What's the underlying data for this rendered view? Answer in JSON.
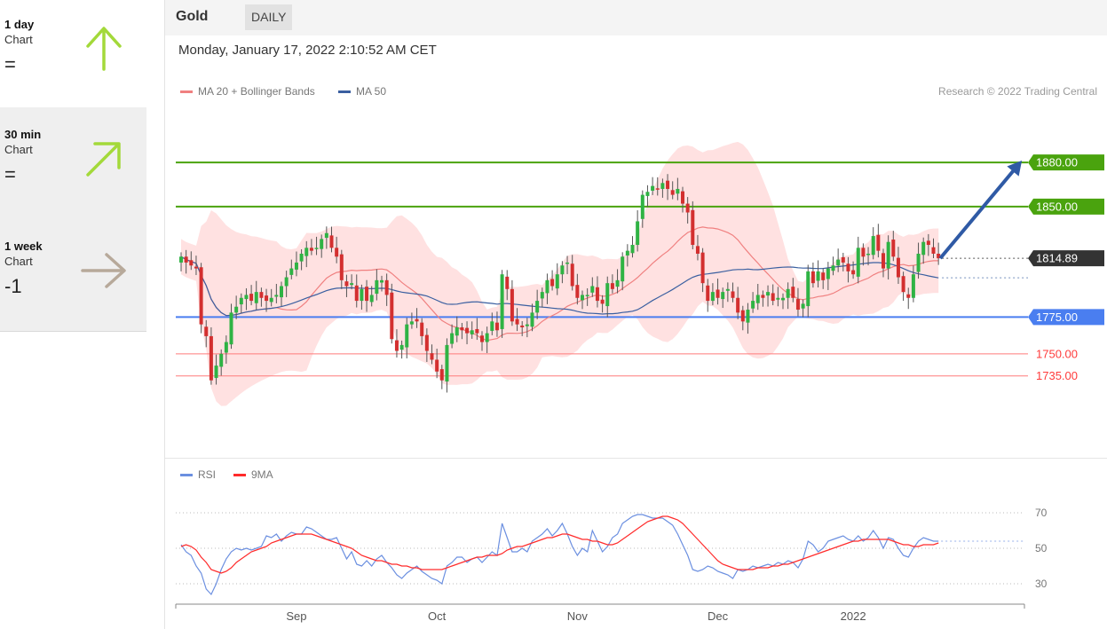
{
  "sidebar": [
    {
      "period": "1 day",
      "sub": "Chart",
      "value": "=",
      "direction": "up",
      "color": "#a3d93a"
    },
    {
      "period": "30 min",
      "sub": "Chart",
      "value": "=",
      "direction": "up-right",
      "color": "#a3d93a"
    },
    {
      "period": "1 week",
      "sub": "Chart",
      "value": "-1",
      "direction": "right",
      "color": "#b7a99a"
    }
  ],
  "header": {
    "title": "Gold",
    "badge": "DAILY"
  },
  "datetime": "Monday, January 17, 2022 2:10:52 AM CET",
  "legend": {
    "ma20": "MA 20 + Bollinger Bands",
    "ma50": "MA 50",
    "credit": "Research © 2022 Trading Central"
  },
  "rsi_legend": {
    "rsi": "RSI",
    "ma9": "9MA"
  },
  "colors": {
    "ma20": "#f08080",
    "ma50": "#3a5fa0",
    "rsi": "#6b8fe0",
    "ma9": "#ff2b2b",
    "up": "#2fb344",
    "down": "#d32f2f",
    "resistance": "#4aa30e",
    "support": "#4a7ef0",
    "support_minor": "#ff7b7b"
  },
  "chart_data": [
    {
      "type": "candlestick",
      "title": "Gold",
      "timeframe": "DAILY",
      "ylim": [
        1680,
        1915
      ],
      "x_ticks": [
        "Sep",
        "Oct",
        "Nov",
        "Dec",
        "2022"
      ],
      "x_tick_index": [
        23,
        51,
        79,
        107,
        134
      ],
      "last_price": 1814.89,
      "levels": [
        {
          "value": 1880.0,
          "label": "1880.00",
          "kind": "resistance"
        },
        {
          "value": 1850.0,
          "label": "1850.00",
          "kind": "resistance"
        },
        {
          "value": 1814.89,
          "label": "1814.89",
          "kind": "last"
        },
        {
          "value": 1775.0,
          "label": "1775.00",
          "kind": "support"
        },
        {
          "value": 1750.0,
          "label": "1750.00",
          "kind": "support_minor"
        },
        {
          "value": 1735.0,
          "label": "1735.00",
          "kind": "support_minor"
        }
      ],
      "target_arrow": {
        "from": 1814.89,
        "to": 1880.0
      },
      "closes": [
        1816,
        1812,
        1810,
        1808,
        1770,
        1762,
        1732,
        1742,
        1750,
        1758,
        1778,
        1782,
        1788,
        1790,
        1786,
        1792,
        1788,
        1786,
        1788,
        1790,
        1796,
        1802,
        1808,
        1812,
        1818,
        1822,
        1820,
        1822,
        1828,
        1832,
        1822,
        1816,
        1800,
        1796,
        1798,
        1786,
        1794,
        1786,
        1790,
        1800,
        1800,
        1790,
        1760,
        1752,
        1756,
        1770,
        1772,
        1772,
        1762,
        1752,
        1746,
        1738,
        1732,
        1756,
        1764,
        1768,
        1766,
        1764,
        1766,
        1764,
        1758,
        1764,
        1772,
        1766,
        1804,
        1794,
        1772,
        1770,
        1768,
        1770,
        1778,
        1786,
        1792,
        1800,
        1796,
        1804,
        1810,
        1812,
        1796,
        1788,
        1790,
        1790,
        1796,
        1786,
        1784,
        1798,
        1794,
        1800,
        1816,
        1820,
        1824,
        1840,
        1858,
        1860,
        1864,
        1862,
        1866,
        1862,
        1858,
        1862,
        1852,
        1846,
        1824,
        1818,
        1798,
        1786,
        1792,
        1788,
        1792,
        1794,
        1788,
        1778,
        1772,
        1780,
        1786,
        1790,
        1788,
        1792,
        1786,
        1788,
        1788,
        1794,
        1788,
        1780,
        1784,
        1806,
        1798,
        1806,
        1800,
        1808,
        1810,
        1814,
        1812,
        1806,
        1804,
        1822,
        1816,
        1818,
        1830,
        1820,
        1808,
        1826,
        1816,
        1802,
        1792,
        1788,
        1804,
        1818,
        1826,
        1824,
        1818,
        1814.89
      ],
      "rsi": [
        52,
        48,
        46,
        40,
        36,
        27,
        24,
        30,
        38,
        44,
        48,
        50,
        49,
        50,
        49,
        50,
        51,
        57,
        56,
        58,
        54,
        57,
        59,
        58,
        58,
        62,
        61,
        59,
        57,
        55,
        55,
        56,
        50,
        44,
        48,
        41,
        40,
        43,
        40,
        44,
        46,
        42,
        39,
        35,
        33,
        36,
        38,
        40,
        37,
        35,
        33,
        32,
        30,
        40,
        42,
        45,
        45,
        42,
        44,
        45,
        42,
        45,
        48,
        46,
        64,
        56,
        48,
        48,
        50,
        48,
        54,
        56,
        58,
        61,
        57,
        60,
        64,
        58,
        51,
        46,
        50,
        48,
        60,
        54,
        48,
        51,
        56,
        58,
        64,
        66,
        68,
        69,
        69,
        68,
        67,
        67,
        67,
        65,
        63,
        58,
        52,
        46,
        38,
        37,
        38,
        40,
        39,
        37,
        36,
        35,
        33,
        38,
        37,
        38,
        40,
        39,
        40,
        41,
        40,
        42,
        41,
        43,
        42,
        39,
        44,
        54,
        52,
        48,
        50,
        54,
        55,
        56,
        57,
        55,
        54,
        57,
        54,
        56,
        60,
        56,
        50,
        56,
        55,
        50,
        46,
        45,
        50,
        54,
        56,
        55,
        54,
        54
      ],
      "rsi_ma9": [
        51,
        52,
        51,
        49,
        45,
        42,
        38,
        37,
        36,
        37,
        39,
        42,
        44,
        46,
        48,
        49,
        50,
        51,
        53,
        54,
        55,
        56,
        57,
        58,
        58,
        58,
        58,
        57,
        56,
        55,
        54,
        53,
        52,
        51,
        50,
        48,
        46,
        45,
        44,
        43,
        43,
        42,
        41,
        41,
        40,
        40,
        39,
        39,
        38,
        38,
        38,
        38,
        38,
        39,
        40,
        41,
        42,
        43,
        44,
        45,
        45,
        46,
        46,
        46,
        47,
        49,
        50,
        51,
        51,
        52,
        53,
        54,
        55,
        56,
        56,
        57,
        58,
        58,
        57,
        56,
        55,
        55,
        54,
        54,
        53,
        52,
        52,
        53,
        55,
        57,
        59,
        61,
        63,
        65,
        66,
        67,
        68,
        68,
        67,
        66,
        64,
        61,
        58,
        55,
        52,
        49,
        46,
        43,
        41,
        40,
        39,
        38,
        38,
        38,
        38,
        39,
        39,
        39,
        40,
        40,
        41,
        41,
        42,
        43,
        44,
        45,
        46,
        47,
        48,
        49,
        50,
        51,
        52,
        53,
        54,
        54,
        55,
        55,
        55,
        55,
        55,
        55,
        54,
        53,
        52,
        52,
        51,
        51,
        52,
        52,
        52,
        53
      ],
      "rsi_levels": [
        70,
        50,
        30
      ],
      "rsi_ylim": [
        15,
        85
      ]
    }
  ]
}
